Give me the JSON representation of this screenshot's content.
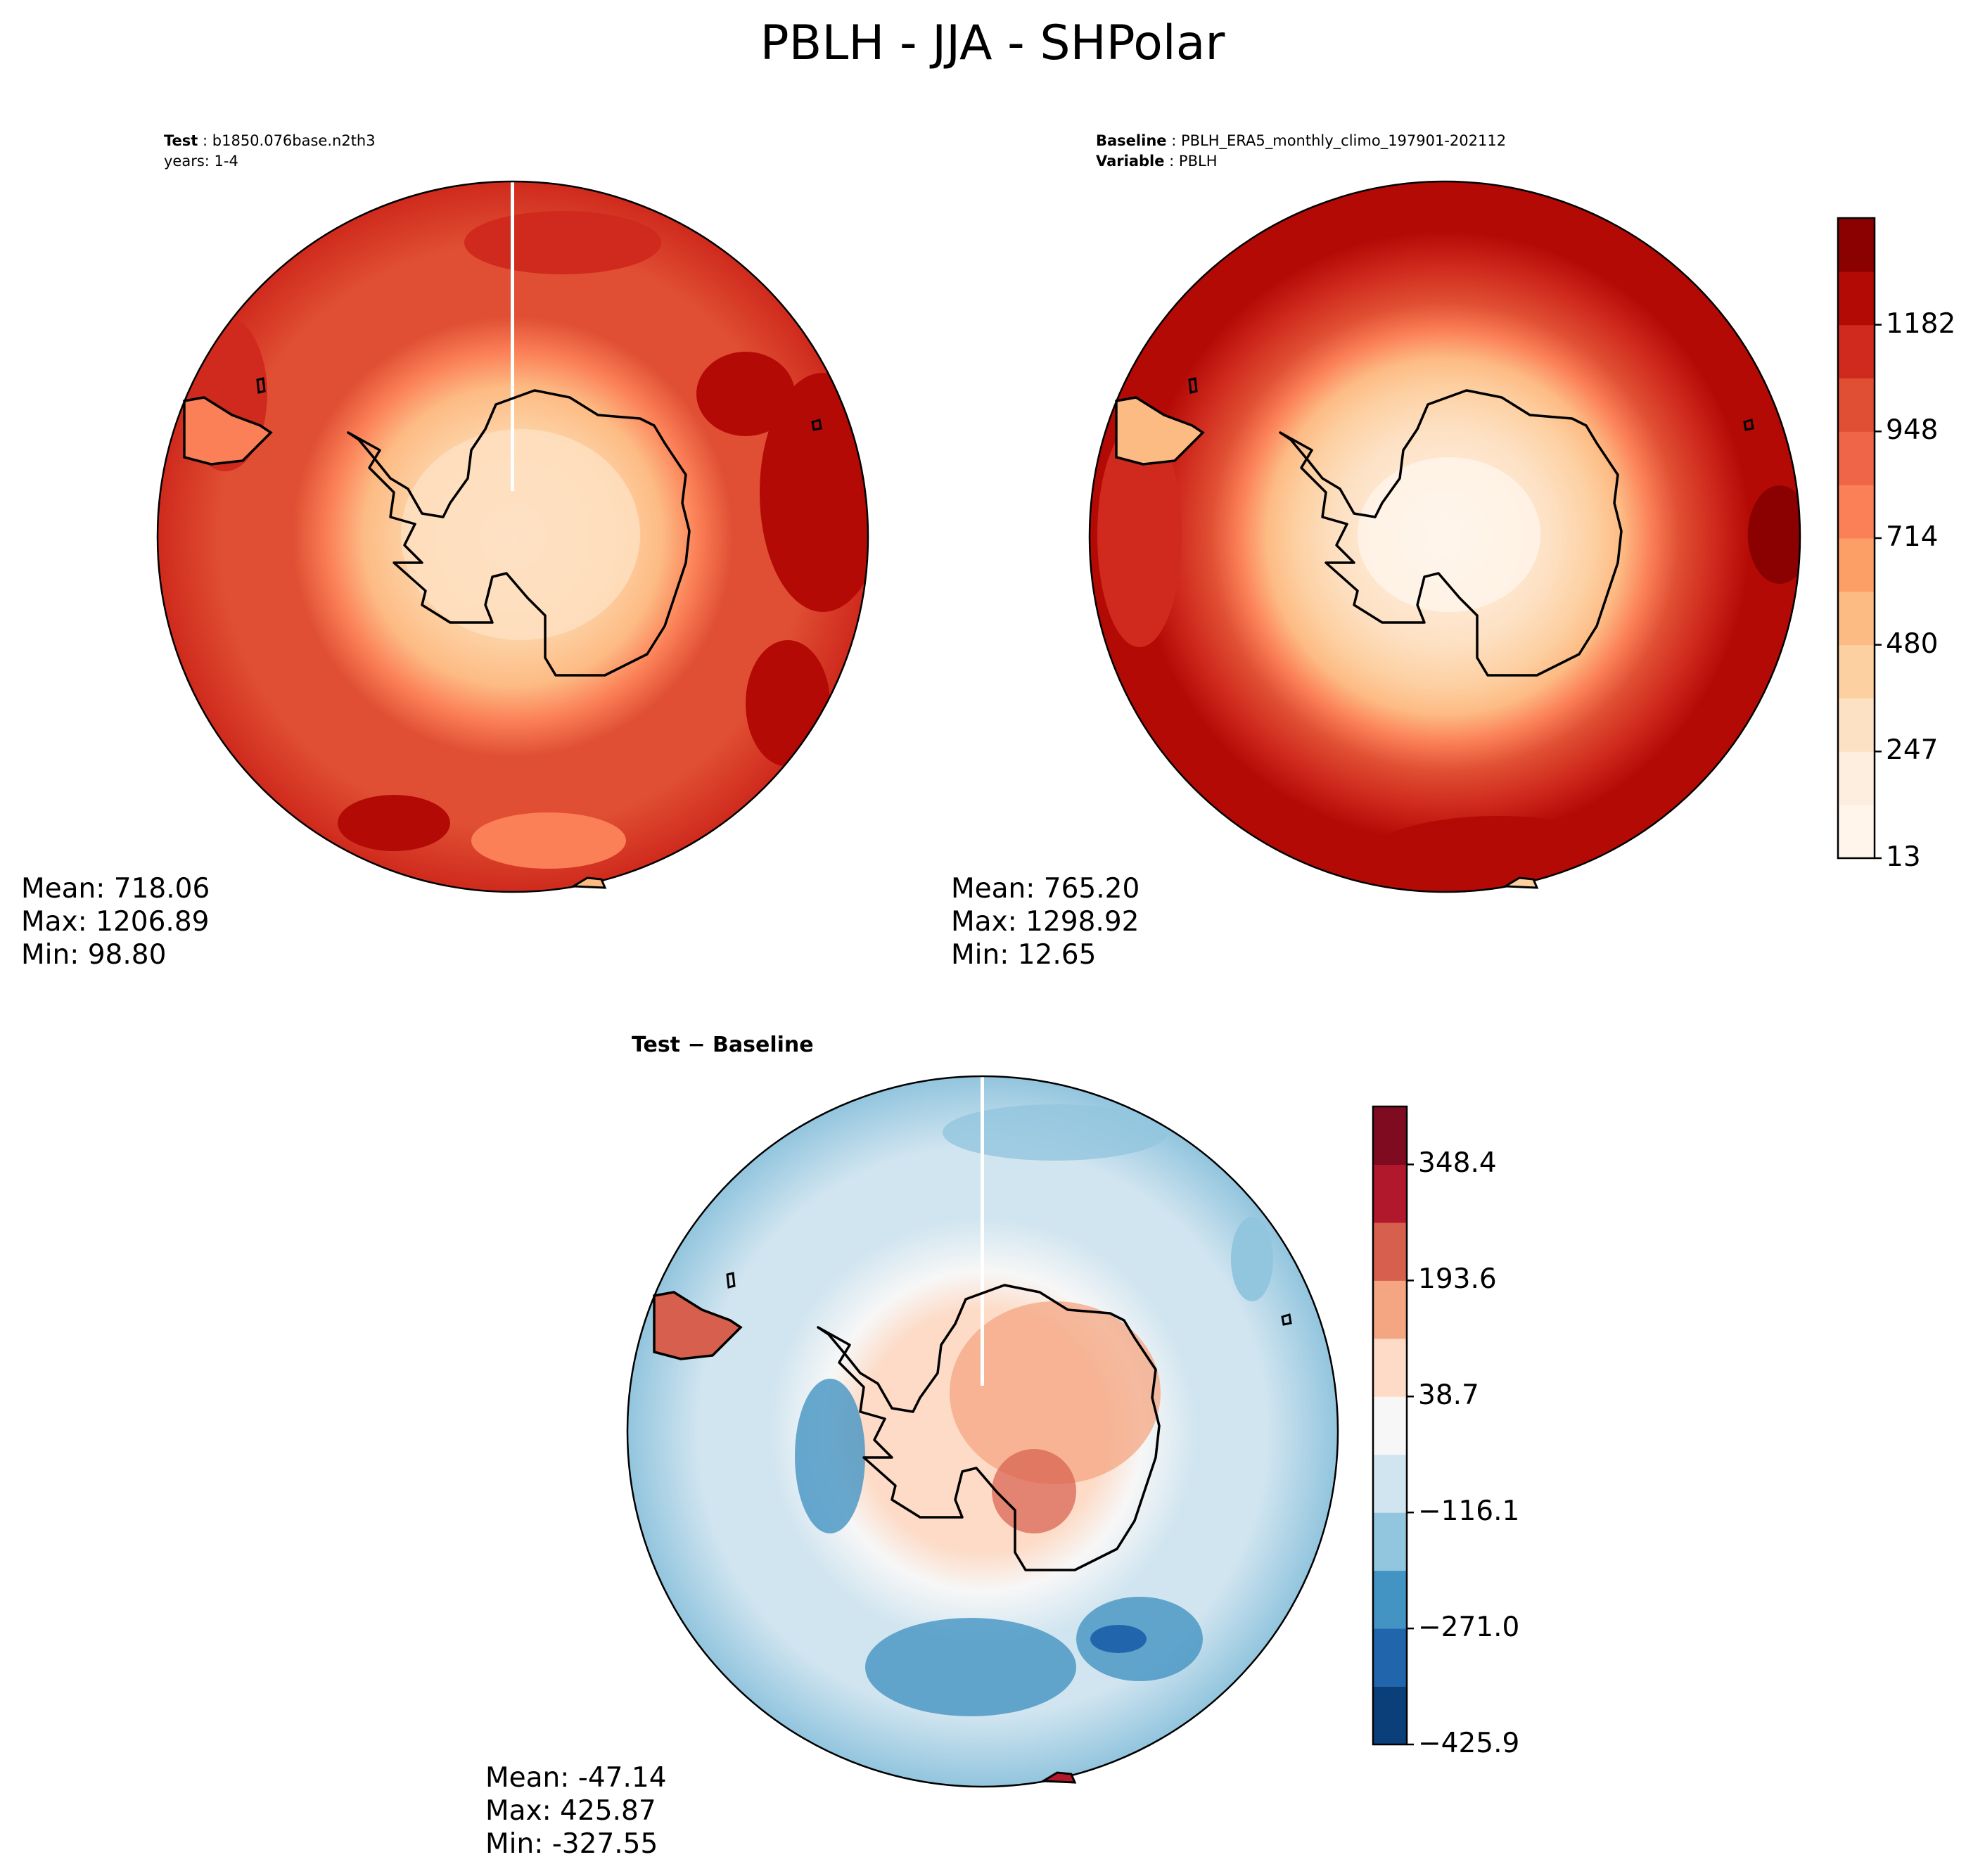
{
  "title": "PBLH - JJA - SHPolar",
  "panels": {
    "test": {
      "label": "Test",
      "case": "b1850.076base.n2th3",
      "years": "years: 1-4",
      "mean": "Mean: 718.06",
      "max": "Max: 1206.89",
      "min": "Min: 98.80"
    },
    "baseline": {
      "label": "Baseline",
      "case": "PBLH_ERA5_monthly_climo_197901-202112",
      "variable_label": "Variable",
      "variable": "PBLH",
      "mean": "Mean: 765.20",
      "max": "Max: 1298.92",
      "min": "Min: 12.65"
    },
    "diff": {
      "title": "Test − Baseline",
      "mean": "Mean: -47.14",
      "max": "Max: 425.87",
      "min": "Min: -327.55"
    }
  },
  "colorbars": {
    "main": {
      "cmap": "Reds",
      "colors": [
        "#fff5eb",
        "#feeedf",
        "#fde1c4",
        "#fdd0a2",
        "#fdbb84",
        "#fc9f67",
        "#fb8057",
        "#ef6548",
        "#e04f33",
        "#cf2a1d",
        "#b40a06",
        "#8b0000"
      ],
      "tick_labels": [
        "1182",
        "948",
        "714",
        "480",
        "247",
        "13"
      ]
    },
    "diff": {
      "cmap": "RdBu_r",
      "colors": [
        "#0b3f7a",
        "#2166ac",
        "#4393c3",
        "#92c5de",
        "#d1e5f0",
        "#f7f7f7",
        "#fddbc7",
        "#f4a582",
        "#d6604d",
        "#b2182b",
        "#7f0b21"
      ],
      "tick_labels": [
        "348.4",
        "193.6",
        "38.7",
        "−116.1",
        "−271.0",
        "−425.9"
      ]
    }
  }
}
